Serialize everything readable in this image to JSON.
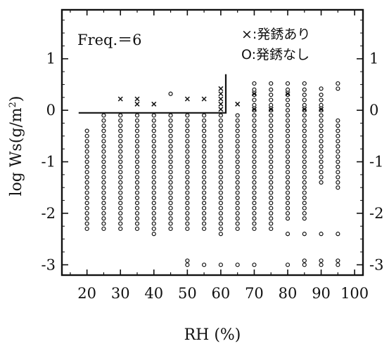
{
  "chart_data": {
    "type": "scatter",
    "annotation": "Freq.＝6",
    "xlabel": "RH (%)",
    "ylabel_parts": [
      "log Ws(g/m",
      "2",
      ")"
    ],
    "xlim": [
      12.5,
      102.5
    ],
    "ylim": [
      -3.2,
      1.95
    ],
    "x_ticks": [
      20,
      30,
      40,
      50,
      60,
      70,
      80,
      90,
      100
    ],
    "x_tick_labels": [
      "20",
      "30",
      "40",
      "50",
      "60",
      "70",
      "80",
      "90",
      "100"
    ],
    "y_ticks": [
      1,
      0,
      -1,
      -2,
      -3
    ],
    "y_tick_labels": [
      "1",
      "0",
      "-1",
      "-2",
      "-3"
    ],
    "legend": [
      {
        "marker": "×",
        "label": "×:発銹あり"
      },
      {
        "marker": "○",
        "label": "O:発銹なし"
      }
    ],
    "series": [
      {
        "marker": "x",
        "points": [
          [
            30,
            0.22
          ],
          [
            35,
            0.22
          ],
          [
            35,
            0.12
          ],
          [
            40,
            0.12
          ],
          [
            50,
            0.22
          ],
          [
            55,
            0.22
          ],
          [
            60,
            0.42
          ],
          [
            60,
            0.32
          ],
          [
            60,
            0.22
          ],
          [
            60,
            0.12
          ],
          [
            60,
            0.02
          ],
          [
            65,
            0.12
          ],
          [
            70,
            0.32
          ],
          [
            70,
            0.02
          ],
          [
            75,
            0.02
          ],
          [
            80,
            0.32
          ],
          [
            85,
            0.02
          ],
          [
            90,
            0.02
          ]
        ]
      },
      {
        "marker": "o",
        "columns": [
          {
            "x": 20,
            "from": -0.4,
            "to": -2.3
          },
          {
            "x": 25,
            "from": -0.1,
            "to": -2.3
          },
          {
            "x": 30,
            "from": -0.1,
            "to": -2.3
          },
          {
            "x": 35,
            "from": -0.1,
            "to": -2.3
          },
          {
            "x": 40,
            "from": -0.1,
            "to": -2.3
          },
          {
            "x": 45,
            "from": -0.1,
            "to": -2.3
          },
          {
            "x": 50,
            "from": -0.1,
            "to": -2.3
          },
          {
            "x": 55,
            "from": -0.1,
            "to": -2.3
          },
          {
            "x": 60,
            "from": -0.1,
            "to": -2.4
          },
          {
            "x": 65,
            "from": -0.1,
            "to": -2.3
          },
          {
            "x": 70,
            "from": 0.4,
            "to": -2.3
          },
          {
            "x": 75,
            "from": 0.4,
            "to": -2.3
          },
          {
            "x": 80,
            "from": 0.4,
            "to": -2.1
          },
          {
            "x": 85,
            "from": 0.4,
            "to": -2.1
          },
          {
            "x": 90,
            "from": 0.3,
            "to": -1.4
          },
          {
            "x": 95,
            "from": -0.2,
            "to": -1.5
          }
        ],
        "extra_points": [
          [
            40,
            -2.4
          ],
          [
            45,
            0.32
          ],
          [
            70,
            0.52
          ],
          [
            75,
            0.52
          ],
          [
            80,
            0.52
          ],
          [
            85,
            0.52
          ],
          [
            90,
            0.42
          ],
          [
            95,
            0.52
          ],
          [
            95,
            0.42
          ],
          [
            80,
            -2.4
          ],
          [
            85,
            -2.4
          ],
          [
            90,
            -2.4
          ],
          [
            95,
            -2.4
          ],
          [
            50,
            -2.92
          ],
          [
            50,
            -3.0
          ],
          [
            55,
            -3.0
          ],
          [
            60,
            -3.0
          ],
          [
            65,
            -3.0
          ],
          [
            70,
            -3.0
          ],
          [
            80,
            -3.0
          ],
          [
            85,
            -2.92
          ],
          [
            85,
            -3.0
          ],
          [
            90,
            -2.92
          ],
          [
            90,
            -3.0
          ],
          [
            95,
            -2.92
          ],
          [
            95,
            -3.0
          ]
        ]
      }
    ],
    "boundary": [
      [
        17.5,
        -0.05
      ],
      [
        61.5,
        -0.05
      ],
      [
        61.5,
        0.7
      ]
    ]
  }
}
